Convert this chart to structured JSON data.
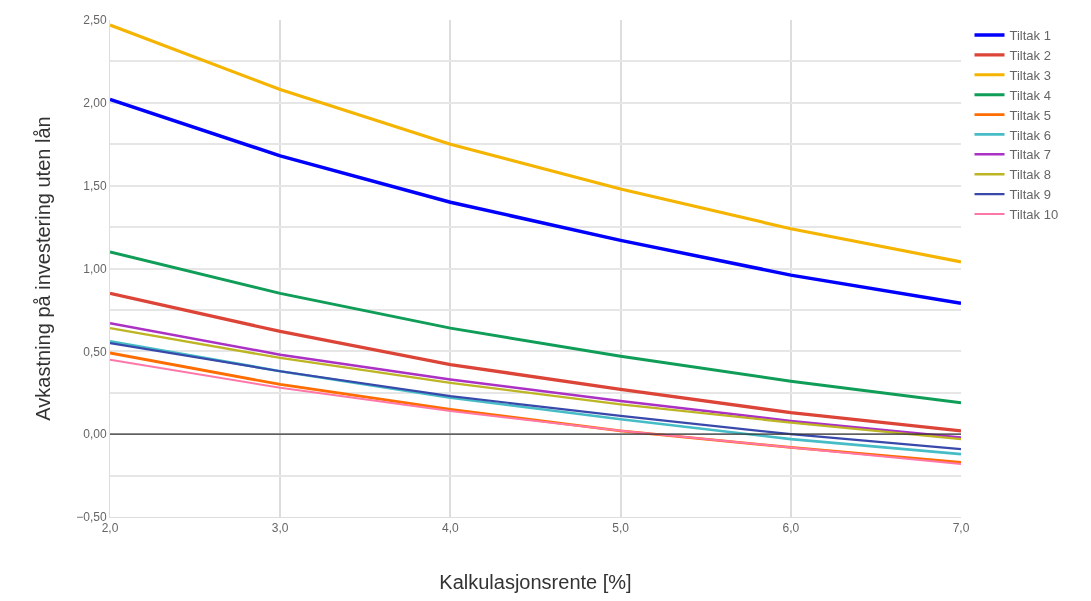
{
  "chart_data": {
    "type": "line",
    "xlabel": "Kalkulasjonsrente [%]",
    "ylabel": "Avkastning på investering uten lån",
    "x": [
      2,
      3,
      4,
      5,
      6,
      7
    ],
    "xlim": [
      2,
      7
    ],
    "xticks": [
      {
        "value": 2,
        "label": "2,0"
      },
      {
        "value": 3,
        "label": "3,0"
      },
      {
        "value": 4,
        "label": "4,0"
      },
      {
        "value": 5,
        "label": "5,0"
      },
      {
        "value": 6,
        "label": "6,0"
      },
      {
        "value": 7,
        "label": "7,0"
      }
    ],
    "ylim": [
      -0.5,
      2.5
    ],
    "yticks": [
      {
        "value": -0.5,
        "label": "−0,50"
      },
      {
        "value": -0.25,
        "label": null
      },
      {
        "value": 0,
        "label": "0,00"
      },
      {
        "value": 0.25,
        "label": null
      },
      {
        "value": 0.5,
        "label": "0,50"
      },
      {
        "value": 0.75,
        "label": null
      },
      {
        "value": 1,
        "label": "1,00"
      },
      {
        "value": 1.25,
        "label": null
      },
      {
        "value": 1.5,
        "label": "1,50"
      },
      {
        "value": 1.75,
        "label": null
      },
      {
        "value": 2,
        "label": "2,00"
      },
      {
        "value": 2.25,
        "label": null
      },
      {
        "value": 2.5,
        "label": "2,50"
      }
    ],
    "grid": true,
    "legend": "top right",
    "marker": "none",
    "line_style": "solid",
    "ref_lines": [
      {
        "axis": "y",
        "value": 0,
        "color": "#333333"
      }
    ],
    "series": [
      {
        "name": "Tiltak 1",
        "color": "#0000ff",
        "values": [
          2.02,
          1.68,
          1.4,
          1.17,
          0.96,
          0.79
        ]
      },
      {
        "name": "Tiltak 2",
        "color": "#db4437",
        "values": [
          0.85,
          0.62,
          0.42,
          0.27,
          0.13,
          0.02
        ]
      },
      {
        "name": "Tiltak 3",
        "color": "#f4b400",
        "values": [
          2.47,
          2.08,
          1.75,
          1.48,
          1.24,
          1.04
        ]
      },
      {
        "name": "Tiltak 4",
        "color": "#0f9d58",
        "values": [
          1.1,
          0.85,
          0.64,
          0.47,
          0.32,
          0.19
        ]
      },
      {
        "name": "Tiltak 5",
        "color": "#ff6d00",
        "values": [
          0.49,
          0.3,
          0.15,
          0.02,
          -0.08,
          -0.17
        ]
      },
      {
        "name": "Tiltak 6",
        "color": "#46bdc6",
        "values": [
          0.56,
          0.38,
          0.22,
          0.09,
          -0.03,
          -0.12
        ]
      },
      {
        "name": "Tiltak 7",
        "color": "#ab30c4",
        "values": [
          0.67,
          0.48,
          0.33,
          0.2,
          0.08,
          -0.02
        ]
      },
      {
        "name": "Tiltak 8",
        "color": "#bdb524",
        "values": [
          0.64,
          0.46,
          0.31,
          0.18,
          0.07,
          -0.03
        ]
      },
      {
        "name": "Tiltak 9",
        "color": "#3949ab",
        "values": [
          0.55,
          0.38,
          0.23,
          0.11,
          0.0,
          -0.09
        ]
      },
      {
        "name": "Tiltak 10",
        "color": "#ff77a9",
        "values": [
          0.45,
          0.28,
          0.14,
          0.02,
          -0.08,
          -0.18
        ]
      }
    ]
  }
}
